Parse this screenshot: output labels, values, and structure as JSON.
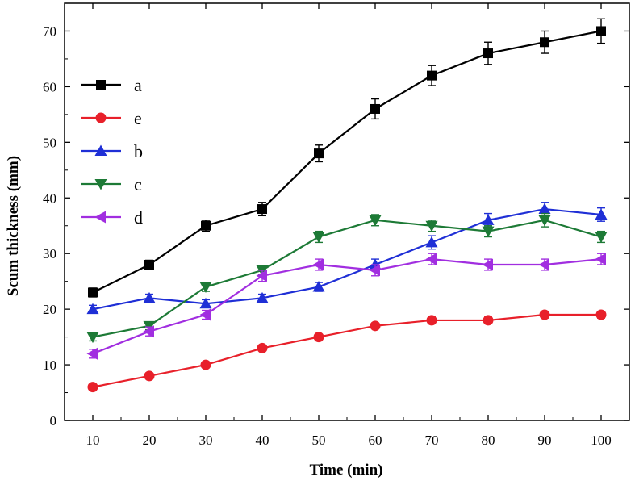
{
  "chart_data": {
    "type": "line",
    "title": "",
    "xlabel": "Time (min)",
    "ylabel": "Scum thickness (mm)",
    "x": [
      10,
      20,
      30,
      40,
      50,
      60,
      70,
      80,
      90,
      100
    ],
    "xlim": [
      5,
      105
    ],
    "ylim": [
      0,
      75
    ],
    "xticks": [
      10,
      20,
      30,
      40,
      50,
      60,
      70,
      80,
      90,
      100
    ],
    "yticks": [
      0,
      10,
      20,
      30,
      40,
      50,
      60,
      70
    ],
    "grid": false,
    "legend_position": "top-left",
    "series": [
      {
        "name": "a",
        "color": "#000000",
        "marker": "square",
        "values": [
          23,
          28,
          35,
          38,
          48,
          56,
          62,
          66,
          68,
          70
        ],
        "errors": [
          0.8,
          0.8,
          1.0,
          1.2,
          1.5,
          1.8,
          1.8,
          2.0,
          2.0,
          2.2
        ]
      },
      {
        "name": "e",
        "color": "#e8202a",
        "marker": "circle",
        "values": [
          6,
          8,
          10,
          13,
          15,
          17,
          18,
          18,
          19,
          19
        ],
        "errors": [
          0.5,
          0.5,
          0.5,
          0.5,
          0.5,
          0.5,
          0.6,
          0.6,
          0.6,
          0.6
        ]
      },
      {
        "name": "b",
        "color": "#1f2fd6",
        "marker": "triangle-up",
        "values": [
          20,
          22,
          21,
          22,
          24,
          28,
          32,
          36,
          38,
          37
        ],
        "errors": [
          0.7,
          0.7,
          0.7,
          0.7,
          0.8,
          1.0,
          1.2,
          1.2,
          1.2,
          1.2
        ]
      },
      {
        "name": "c",
        "color": "#1d7a36",
        "marker": "triangle-down",
        "values": [
          15,
          17,
          24,
          27,
          33,
          36,
          35,
          34,
          36,
          33
        ],
        "errors": [
          0.7,
          0.7,
          0.8,
          0.8,
          1.0,
          1.0,
          1.0,
          1.0,
          1.2,
          1.0
        ]
      },
      {
        "name": "d",
        "color": "#a12ee0",
        "marker": "triangle-left",
        "values": [
          12,
          16,
          19,
          26,
          28,
          27,
          29,
          28,
          28,
          29
        ],
        "errors": [
          0.8,
          0.8,
          0.8,
          1.0,
          1.0,
          1.0,
          1.0,
          1.0,
          1.0,
          1.0
        ]
      }
    ]
  }
}
